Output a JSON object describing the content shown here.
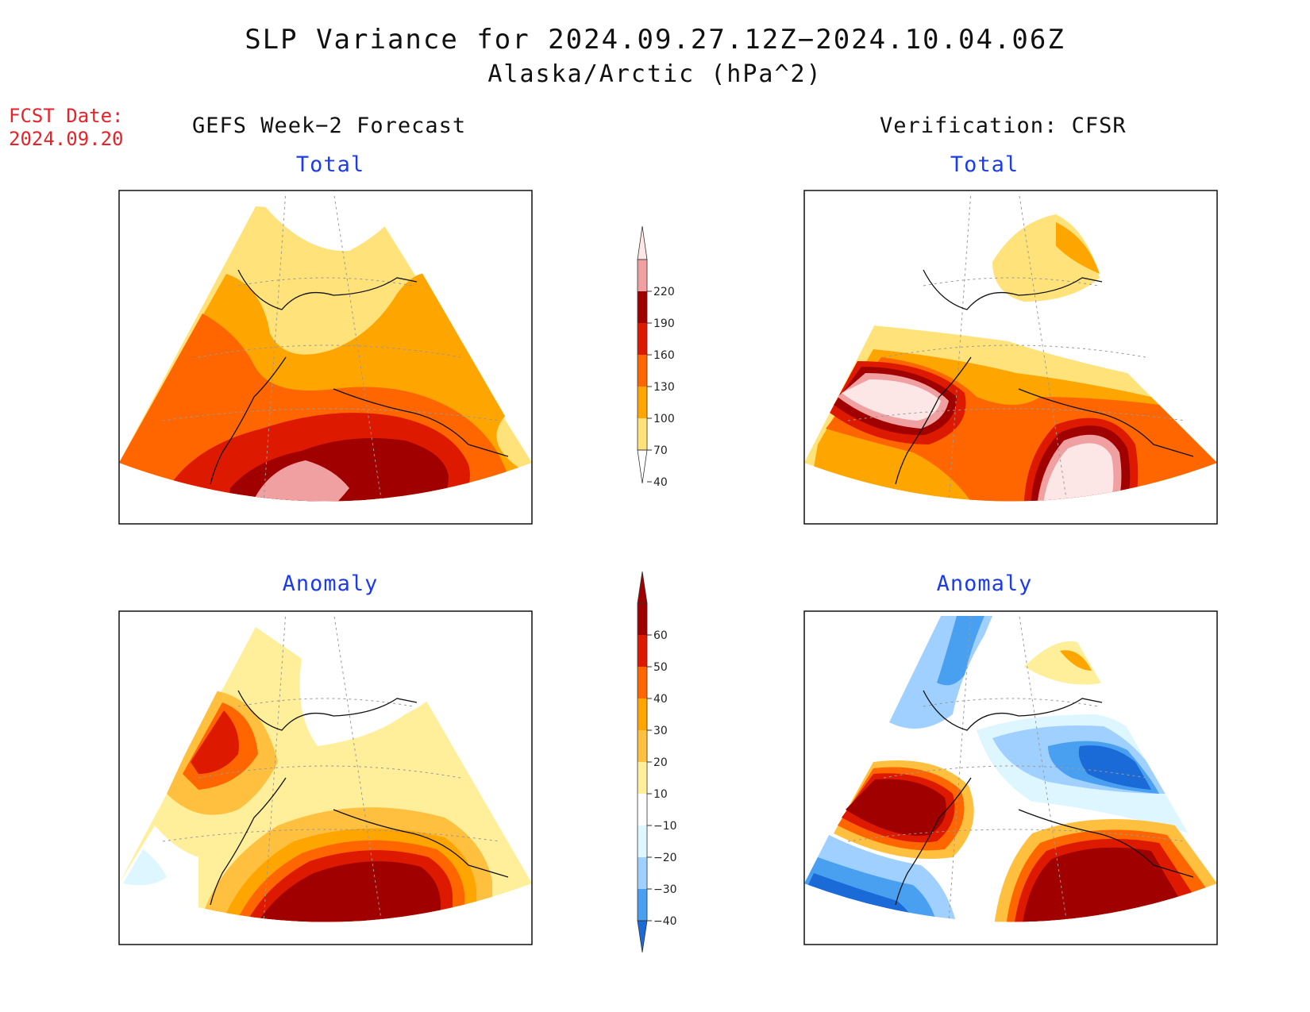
{
  "title": {
    "line1": "SLP Variance for 2024.09.27.12Z−2024.10.04.06Z",
    "line2": "Alaska/Arctic (hPa^2)"
  },
  "fcst_date": {
    "label": "FCST Date:",
    "value": "2024.09.20"
  },
  "columns": {
    "left": "GEFS Week−2 Forecast",
    "right": "Verification: CFSR"
  },
  "panels": {
    "top_left": "Total",
    "top_right": "Total",
    "bottom_left": "Anomaly",
    "bottom_right": "Anomaly"
  },
  "colorbar_total": {
    "levels": [
      "220",
      "190",
      "160",
      "130",
      "100",
      "70",
      "40"
    ],
    "colors": [
      "#fde6e6",
      "#f0a0a0",
      "#a00000",
      "#dd1a00",
      "#ff6600",
      "#ffa500",
      "#ffe37a"
    ]
  },
  "colorbar_anomaly": {
    "levels": [
      "60",
      "50",
      "40",
      "30",
      "20",
      "10",
      "−10",
      "−20",
      "−30",
      "−40"
    ],
    "colors": [
      "#a00000",
      "#dd1a00",
      "#ff6600",
      "#ffa500",
      "#ffc040",
      "#ffef9a",
      "#ffffff",
      "#def6ff",
      "#9fd0ff",
      "#4aa0f0",
      "#1a6ad8"
    ]
  }
}
